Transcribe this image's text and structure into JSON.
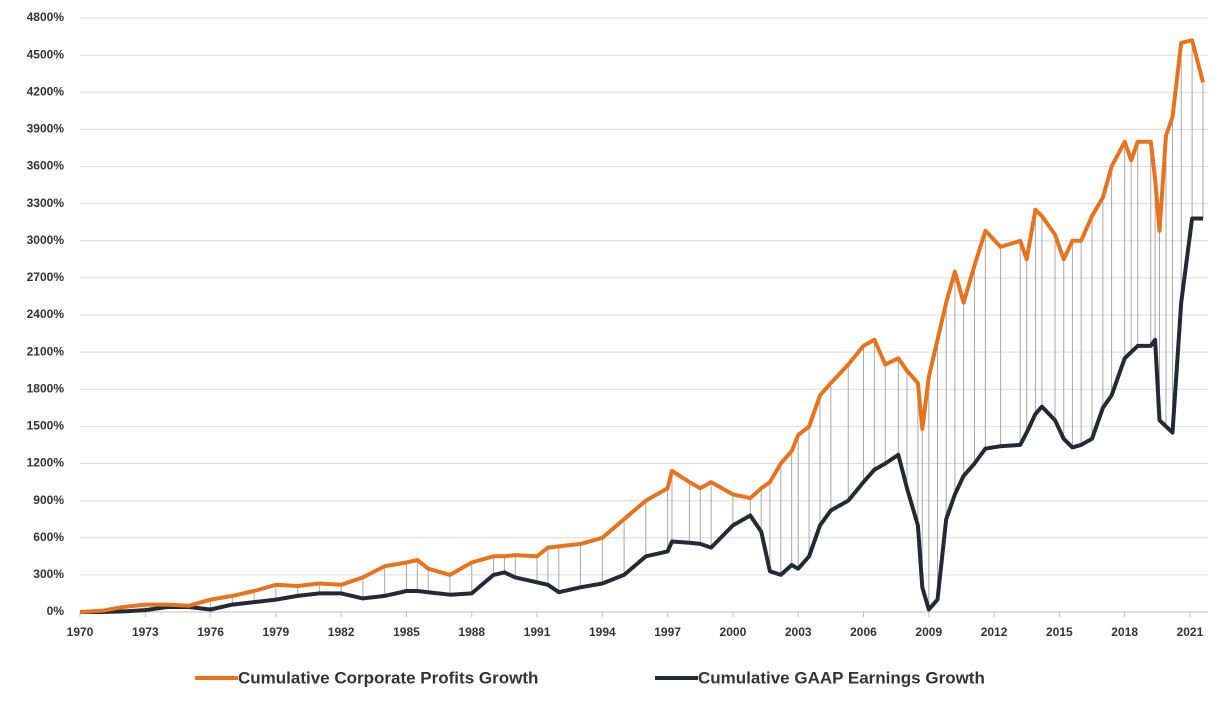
{
  "chart_data": {
    "type": "line",
    "x": [
      1970,
      1971,
      1972,
      1973,
      1974,
      1975,
      1976,
      1977,
      1978,
      1979,
      1980,
      1981,
      1982,
      1983,
      1984,
      1985,
      1985.5,
      1986,
      1987,
      1988,
      1989,
      1989.5,
      1990,
      1991,
      1991.5,
      1992,
      1993,
      1994,
      1995,
      1996,
      1997,
      1997.2,
      1998,
      1998.5,
      1999,
      2000,
      2000.8,
      2001.3,
      2001.7,
      2002.2,
      2002.7,
      2003,
      2003.5,
      2004,
      2004.5,
      2005.3,
      2006,
      2006.5,
      2007,
      2007.6,
      2008,
      2008.5,
      2008.7,
      2009,
      2009.4,
      2009.8,
      2010.2,
      2010.6,
      2011.1,
      2011.6,
      2012.3,
      2013.2,
      2013.5,
      2013.9,
      2014.2,
      2014.8,
      2015.2,
      2015.6,
      2016,
      2016.5,
      2017,
      2017.4,
      2018,
      2018.3,
      2018.6,
      2019.2,
      2019.4,
      2019.6,
      2019.9,
      2020.2,
      2020.6,
      2021.1,
      2021.6
    ],
    "series": [
      {
        "name": "Cumulative Corporate Profits Growth",
        "color": "#e8731c",
        "values": [
          0,
          10,
          40,
          60,
          60,
          50,
          100,
          130,
          170,
          220,
          210,
          230,
          220,
          280,
          370,
          400,
          420,
          350,
          300,
          400,
          450,
          450,
          460,
          450,
          520,
          530,
          550,
          600,
          750,
          900,
          1000,
          1140,
          1050,
          1000,
          1050,
          950,
          920,
          1000,
          1050,
          1200,
          1300,
          1430,
          1500,
          1750,
          1850,
          2000,
          2150,
          2200,
          2000,
          2050,
          1950,
          1850,
          1480,
          1900,
          2200,
          2500,
          2750,
          2500,
          2800,
          3080,
          2950,
          3000,
          2850,
          3250,
          3200,
          3050,
          2850,
          3000,
          3000,
          3200,
          3350,
          3600,
          3800,
          3650,
          3800,
          3800,
          3500,
          3080,
          3850,
          4000,
          4600,
          4620,
          4280
        ]
      },
      {
        "name": "Cumulative GAAP Earnings Growth",
        "color": "#222a33",
        "values": [
          0,
          0,
          5,
          15,
          40,
          40,
          20,
          60,
          80,
          100,
          130,
          150,
          150,
          110,
          130,
          170,
          170,
          160,
          140,
          150,
          300,
          320,
          280,
          240,
          220,
          160,
          200,
          230,
          300,
          450,
          490,
          570,
          560,
          550,
          520,
          700,
          780,
          650,
          330,
          300,
          380,
          350,
          450,
          700,
          820,
          900,
          1050,
          1150,
          1200,
          1270,
          1000,
          700,
          200,
          20,
          100,
          750,
          950,
          1100,
          1200,
          1320,
          1340,
          1350,
          1450,
          1600,
          1660,
          1550,
          1400,
          1330,
          1350,
          1400,
          1650,
          1750,
          2050,
          2100,
          2150,
          2150,
          2200,
          1550,
          1500,
          1450,
          2500,
          3180,
          3180
        ]
      }
    ],
    "xlim": [
      1970,
      2021.6
    ],
    "xticks": [
      1970,
      1973,
      1976,
      1979,
      1982,
      1985,
      1988,
      1991,
      1994,
      1997,
      2000,
      2003,
      2006,
      2009,
      2012,
      2015,
      2018,
      2021
    ],
    "ylim": [
      0,
      4800
    ],
    "yticks": [
      {
        "value": 0,
        "label": "0%"
      },
      {
        "value": 300,
        "label": "300%"
      },
      {
        "value": 600,
        "label": "600%"
      },
      {
        "value": 900,
        "label": "900%"
      },
      {
        "value": 1200,
        "label": "1200%"
      },
      {
        "value": 1500,
        "label": "1500%"
      },
      {
        "value": 1800,
        "label": "1800%"
      },
      {
        "value": 2100,
        "label": "2100%"
      },
      {
        "value": 2400,
        "label": "2400%"
      },
      {
        "value": 2700,
        "label": "2700%"
      },
      {
        "value": 3000,
        "label": "3000%"
      },
      {
        "value": 3300,
        "label": "3300%"
      },
      {
        "value": 3600,
        "label": "3600%"
      },
      {
        "value": 3900,
        "label": "3900%"
      },
      {
        "value": 4200,
        "label": "4200%"
      },
      {
        "value": 4500,
        "label": "4500%"
      },
      {
        "value": 4800,
        "label": "4800%"
      }
    ],
    "grid": true,
    "legend": "bottom"
  }
}
